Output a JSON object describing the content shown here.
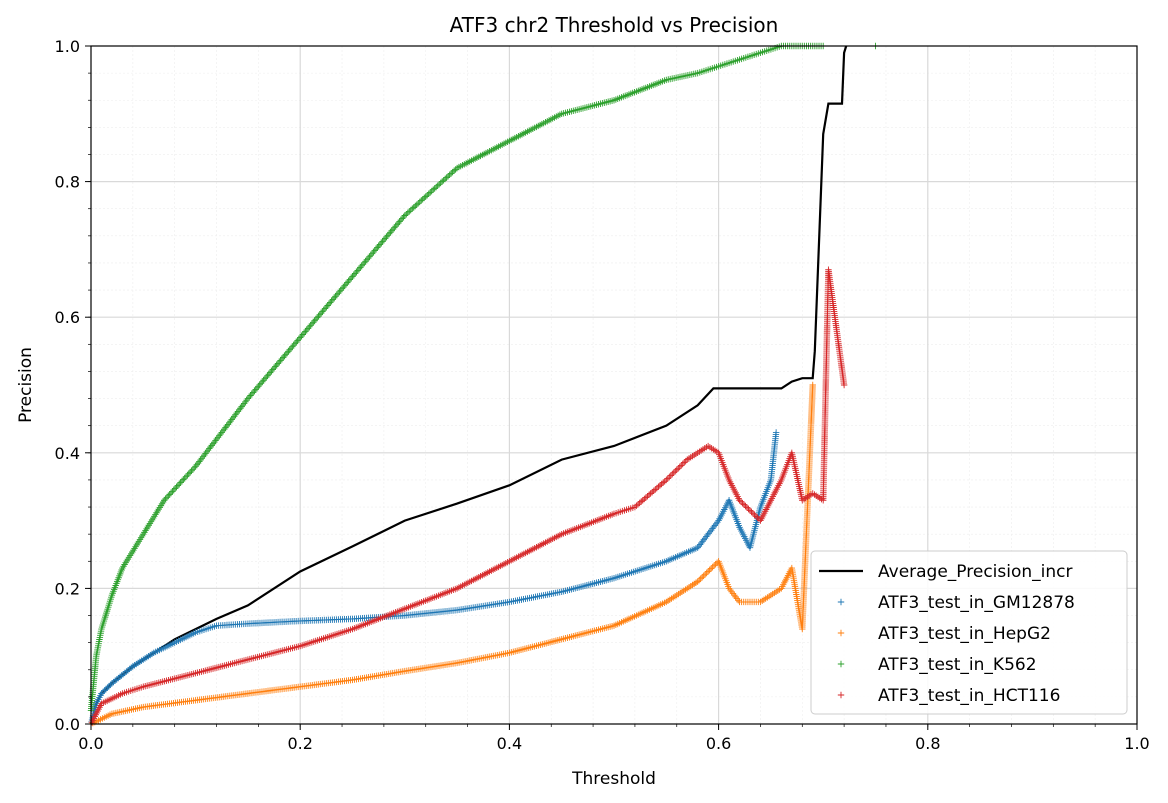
{
  "chart_data": {
    "type": "scatter",
    "title": "ATF3 chr2 Threshold vs Precision",
    "xlabel": "Threshold",
    "ylabel": "Precision",
    "xlim": [
      0,
      1
    ],
    "ylim": [
      0,
      1
    ],
    "xticks": [
      "0.0",
      "0.2",
      "0.4",
      "0.6",
      "0.8",
      "1.0"
    ],
    "yticks": [
      "0.0",
      "0.2",
      "0.4",
      "0.6",
      "0.8",
      "1.0"
    ],
    "grid": true,
    "minor_grid": true,
    "legend_position": "lower-right",
    "series": [
      {
        "name": "Average_Precision_incr",
        "kind": "line",
        "color": "#000000",
        "points": [
          [
            0.0,
            0.0
          ],
          [
            0.005,
            0.03
          ],
          [
            0.01,
            0.045
          ],
          [
            0.02,
            0.06
          ],
          [
            0.04,
            0.085
          ],
          [
            0.06,
            0.105
          ],
          [
            0.08,
            0.125
          ],
          [
            0.1,
            0.14
          ],
          [
            0.12,
            0.155
          ],
          [
            0.15,
            0.175
          ],
          [
            0.2,
            0.225
          ],
          [
            0.25,
            0.262
          ],
          [
            0.3,
            0.3
          ],
          [
            0.35,
            0.325
          ],
          [
            0.4,
            0.352
          ],
          [
            0.45,
            0.39
          ],
          [
            0.5,
            0.41
          ],
          [
            0.55,
            0.44
          ],
          [
            0.58,
            0.47
          ],
          [
            0.595,
            0.495
          ],
          [
            0.6,
            0.495
          ],
          [
            0.65,
            0.495
          ],
          [
            0.66,
            0.495
          ],
          [
            0.67,
            0.505
          ],
          [
            0.68,
            0.51
          ],
          [
            0.69,
            0.51
          ],
          [
            0.692,
            0.55
          ],
          [
            0.7,
            0.87
          ],
          [
            0.705,
            0.915
          ],
          [
            0.718,
            0.915
          ],
          [
            0.72,
            0.99
          ],
          [
            0.722,
            1.0
          ]
        ]
      },
      {
        "name": "ATF3_test_in_GM12878",
        "kind": "scatter",
        "color": "#1f77b4",
        "points": [
          [
            0.0,
            0.0
          ],
          [
            0.005,
            0.03
          ],
          [
            0.01,
            0.045
          ],
          [
            0.02,
            0.06
          ],
          [
            0.04,
            0.085
          ],
          [
            0.06,
            0.105
          ],
          [
            0.08,
            0.12
          ],
          [
            0.1,
            0.135
          ],
          [
            0.12,
            0.145
          ],
          [
            0.15,
            0.148
          ],
          [
            0.2,
            0.152
          ],
          [
            0.25,
            0.155
          ],
          [
            0.3,
            0.16
          ],
          [
            0.35,
            0.168
          ],
          [
            0.4,
            0.18
          ],
          [
            0.45,
            0.195
          ],
          [
            0.5,
            0.215
          ],
          [
            0.55,
            0.24
          ],
          [
            0.58,
            0.26
          ],
          [
            0.6,
            0.3
          ],
          [
            0.61,
            0.33
          ],
          [
            0.62,
            0.29
          ],
          [
            0.63,
            0.26
          ],
          [
            0.64,
            0.32
          ],
          [
            0.65,
            0.36
          ],
          [
            0.655,
            0.43
          ]
        ]
      },
      {
        "name": "ATF3_test_in_HepG2",
        "kind": "scatter",
        "color": "#ff7f0e",
        "points": [
          [
            0.0,
            0.0
          ],
          [
            0.02,
            0.015
          ],
          [
            0.05,
            0.025
          ],
          [
            0.1,
            0.035
          ],
          [
            0.15,
            0.045
          ],
          [
            0.2,
            0.055
          ],
          [
            0.25,
            0.065
          ],
          [
            0.3,
            0.078
          ],
          [
            0.35,
            0.09
          ],
          [
            0.4,
            0.105
          ],
          [
            0.45,
            0.125
          ],
          [
            0.5,
            0.145
          ],
          [
            0.55,
            0.18
          ],
          [
            0.58,
            0.21
          ],
          [
            0.6,
            0.24
          ],
          [
            0.61,
            0.2
          ],
          [
            0.62,
            0.18
          ],
          [
            0.64,
            0.18
          ],
          [
            0.66,
            0.2
          ],
          [
            0.67,
            0.23
          ],
          [
            0.68,
            0.14
          ],
          [
            0.69,
            0.5
          ]
        ]
      },
      {
        "name": "ATF3_test_in_K562",
        "kind": "scatter",
        "color": "#2ca02c",
        "points": [
          [
            0.0,
            0.02
          ],
          [
            0.005,
            0.1
          ],
          [
            0.01,
            0.14
          ],
          [
            0.02,
            0.19
          ],
          [
            0.03,
            0.23
          ],
          [
            0.05,
            0.28
          ],
          [
            0.07,
            0.33
          ],
          [
            0.1,
            0.38
          ],
          [
            0.15,
            0.48
          ],
          [
            0.2,
            0.57
          ],
          [
            0.25,
            0.66
          ],
          [
            0.3,
            0.75
          ],
          [
            0.35,
            0.82
          ],
          [
            0.4,
            0.86
          ],
          [
            0.45,
            0.9
          ],
          [
            0.5,
            0.92
          ],
          [
            0.55,
            0.95
          ],
          [
            0.58,
            0.96
          ],
          [
            0.6,
            0.97
          ],
          [
            0.62,
            0.98
          ],
          [
            0.64,
            0.99
          ],
          [
            0.66,
            1.0
          ],
          [
            0.7,
            1.0
          ],
          [
            0.75,
            1.0
          ]
        ]
      },
      {
        "name": "ATF3_test_in_HCT116",
        "kind": "scatter",
        "color": "#d62728",
        "points": [
          [
            0.0,
            0.0
          ],
          [
            0.01,
            0.03
          ],
          [
            0.03,
            0.045
          ],
          [
            0.05,
            0.055
          ],
          [
            0.1,
            0.075
          ],
          [
            0.15,
            0.095
          ],
          [
            0.2,
            0.115
          ],
          [
            0.25,
            0.14
          ],
          [
            0.3,
            0.17
          ],
          [
            0.35,
            0.2
          ],
          [
            0.4,
            0.24
          ],
          [
            0.45,
            0.28
          ],
          [
            0.5,
            0.31
          ],
          [
            0.52,
            0.32
          ],
          [
            0.55,
            0.36
          ],
          [
            0.57,
            0.39
          ],
          [
            0.59,
            0.41
          ],
          [
            0.6,
            0.4
          ],
          [
            0.61,
            0.36
          ],
          [
            0.62,
            0.33
          ],
          [
            0.64,
            0.3
          ],
          [
            0.66,
            0.36
          ],
          [
            0.67,
            0.4
          ],
          [
            0.68,
            0.33
          ],
          [
            0.69,
            0.34
          ],
          [
            0.7,
            0.33
          ],
          [
            0.705,
            0.67
          ],
          [
            0.72,
            0.5
          ]
        ]
      }
    ]
  }
}
